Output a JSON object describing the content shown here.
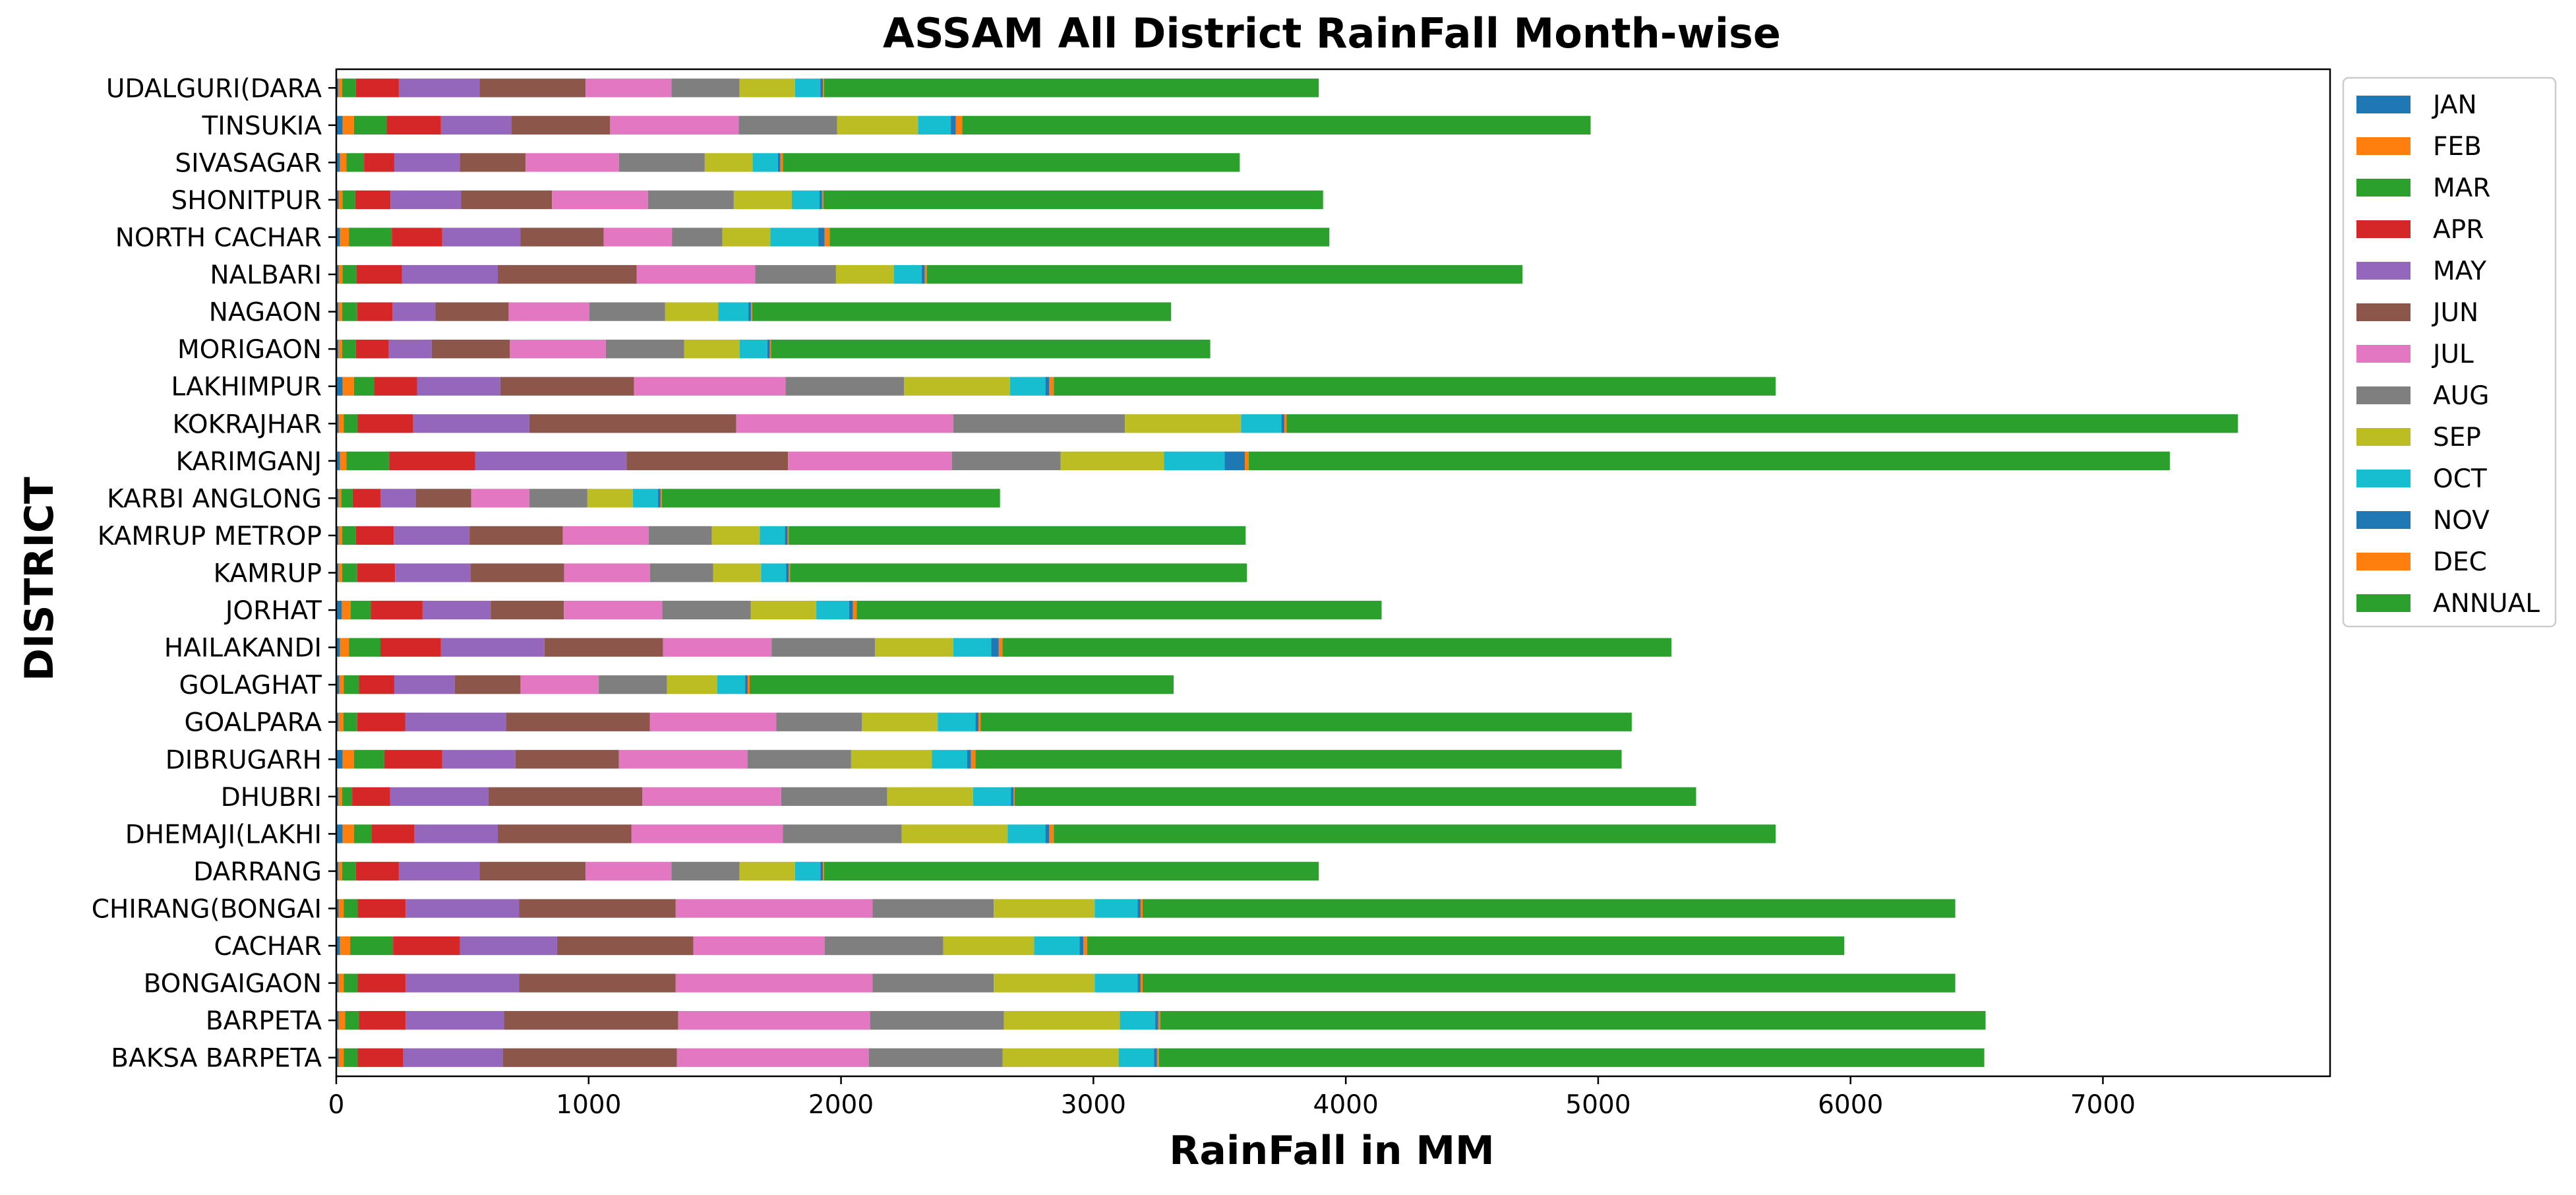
{
  "chart_data": {
    "type": "bar",
    "orientation": "horizontal",
    "stacked": true,
    "title": "ASSAM All District RainFall Month-wise",
    "xlabel": "RainFall in MM",
    "ylabel": "DISTRICT",
    "xlim": [
      0,
      7900
    ],
    "xticks": [
      0,
      1000,
      2000,
      3000,
      4000,
      5000,
      6000,
      7000
    ],
    "grid": false,
    "legend_position": "right, outside top",
    "categories": [
      "BAKSA BARPETA",
      "BARPETA",
      "BONGAIGAON",
      "CACHAR",
      "CHIRANG(BONGAI",
      "DARRANG",
      "DHEMAJI(LAKHI",
      "DHUBRI",
      "DIBRUGARH",
      "GOALPARA",
      "GOLAGHAT",
      "HAILAKANDI",
      "JORHAT",
      "KAMRUP",
      "KAMRUP METROP",
      "KARBI ANGLONG",
      "KARIMGANJ",
      "KOKRAJHAR",
      "LAKHIMPUR",
      "MORIGAON",
      "NAGAON",
      "NALBARI",
      "NORTH CACHAR",
      "SHONITPUR",
      "SIVASAGAR",
      "TINSUKIA",
      "UDALGURI(DARA"
    ],
    "series": [
      {
        "name": "JAN",
        "color": "#1f77b4",
        "values": [
          10,
          10,
          10,
          15,
          10,
          8,
          25,
          8,
          25,
          8,
          12,
          15,
          22,
          8,
          8,
          8,
          15,
          10,
          25,
          8,
          8,
          10,
          15,
          10,
          15,
          25,
          8
        ]
      },
      {
        "name": "FEB",
        "color": "#ff7f0e",
        "values": [
          20,
          25,
          20,
          40,
          20,
          15,
          45,
          15,
          45,
          20,
          18,
          35,
          35,
          15,
          15,
          12,
          25,
          20,
          45,
          15,
          15,
          15,
          35,
          15,
          25,
          45,
          15
        ]
      },
      {
        "name": "MAR",
        "color": "#2ca02c",
        "values": [
          55,
          55,
          55,
          170,
          55,
          55,
          70,
          40,
          120,
          55,
          60,
          125,
          80,
          60,
          55,
          45,
          170,
          55,
          80,
          55,
          60,
          55,
          170,
          50,
          70,
          130,
          55
        ]
      },
      {
        "name": "APR",
        "color": "#d62728",
        "values": [
          180,
          185,
          190,
          265,
          190,
          170,
          170,
          150,
          230,
          190,
          140,
          240,
          205,
          150,
          150,
          110,
          340,
          220,
          170,
          130,
          140,
          180,
          200,
          140,
          120,
          215,
          170
        ]
      },
      {
        "name": "MAY",
        "color": "#9467bd",
        "values": [
          395,
          390,
          450,
          385,
          450,
          320,
          330,
          390,
          290,
          400,
          240,
          410,
          270,
          300,
          300,
          140,
          600,
          460,
          330,
          170,
          170,
          380,
          310,
          280,
          260,
          280,
          320
        ]
      },
      {
        "name": "JUN",
        "color": "#8c564b",
        "values": [
          690,
          690,
          620,
          540,
          620,
          420,
          530,
          610,
          410,
          570,
          260,
          470,
          290,
          370,
          370,
          220,
          640,
          820,
          530,
          310,
          290,
          550,
          330,
          360,
          260,
          390,
          420
        ]
      },
      {
        "name": "JUL",
        "color": "#e377c2",
        "values": [
          760,
          760,
          780,
          520,
          780,
          340,
          600,
          550,
          510,
          500,
          310,
          430,
          390,
          340,
          340,
          230,
          650,
          860,
          600,
          380,
          320,
          470,
          270,
          380,
          370,
          510,
          340
        ]
      },
      {
        "name": "AUG",
        "color": "#7f7f7f",
        "values": [
          530,
          530,
          480,
          470,
          480,
          270,
          470,
          420,
          410,
          340,
          270,
          410,
          350,
          250,
          250,
          230,
          430,
          680,
          470,
          310,
          300,
          320,
          200,
          340,
          340,
          390,
          270
        ]
      },
      {
        "name": "SEP",
        "color": "#bcbd22",
        "values": [
          460,
          460,
          400,
          360,
          400,
          220,
          420,
          340,
          320,
          300,
          200,
          310,
          260,
          190,
          190,
          180,
          410,
          460,
          420,
          220,
          210,
          230,
          190,
          230,
          190,
          320,
          220
        ]
      },
      {
        "name": "OCT",
        "color": "#17becf",
        "values": [
          140,
          140,
          170,
          180,
          170,
          100,
          150,
          150,
          140,
          150,
          110,
          150,
          130,
          100,
          100,
          100,
          240,
          160,
          140,
          110,
          120,
          110,
          190,
          110,
          100,
          130,
          100
        ]
      },
      {
        "name": "NOV",
        "color": "#1f77b4",
        "values": [
          12,
          12,
          12,
          15,
          12,
          10,
          15,
          10,
          15,
          12,
          10,
          30,
          15,
          10,
          10,
          10,
          80,
          12,
          15,
          10,
          10,
          12,
          25,
          10,
          10,
          20,
          10
        ]
      },
      {
        "name": "DEC",
        "color": "#ff7f0e",
        "values": [
          8,
          8,
          8,
          15,
          8,
          5,
          18,
          5,
          18,
          8,
          8,
          15,
          15,
          5,
          5,
          5,
          15,
          8,
          18,
          5,
          5,
          8,
          20,
          5,
          10,
          25,
          5
        ]
      },
      {
        "name": "ANNUAL",
        "color": "#2ca02c",
        "values": [
          3270,
          3270,
          3220,
          3000,
          3220,
          1960,
          2860,
          2700,
          2560,
          2580,
          1680,
          2650,
          2080,
          1810,
          1810,
          1340,
          3650,
          3770,
          2860,
          1740,
          1660,
          2360,
          1980,
          1980,
          1810,
          2490,
          1960
        ]
      }
    ]
  }
}
